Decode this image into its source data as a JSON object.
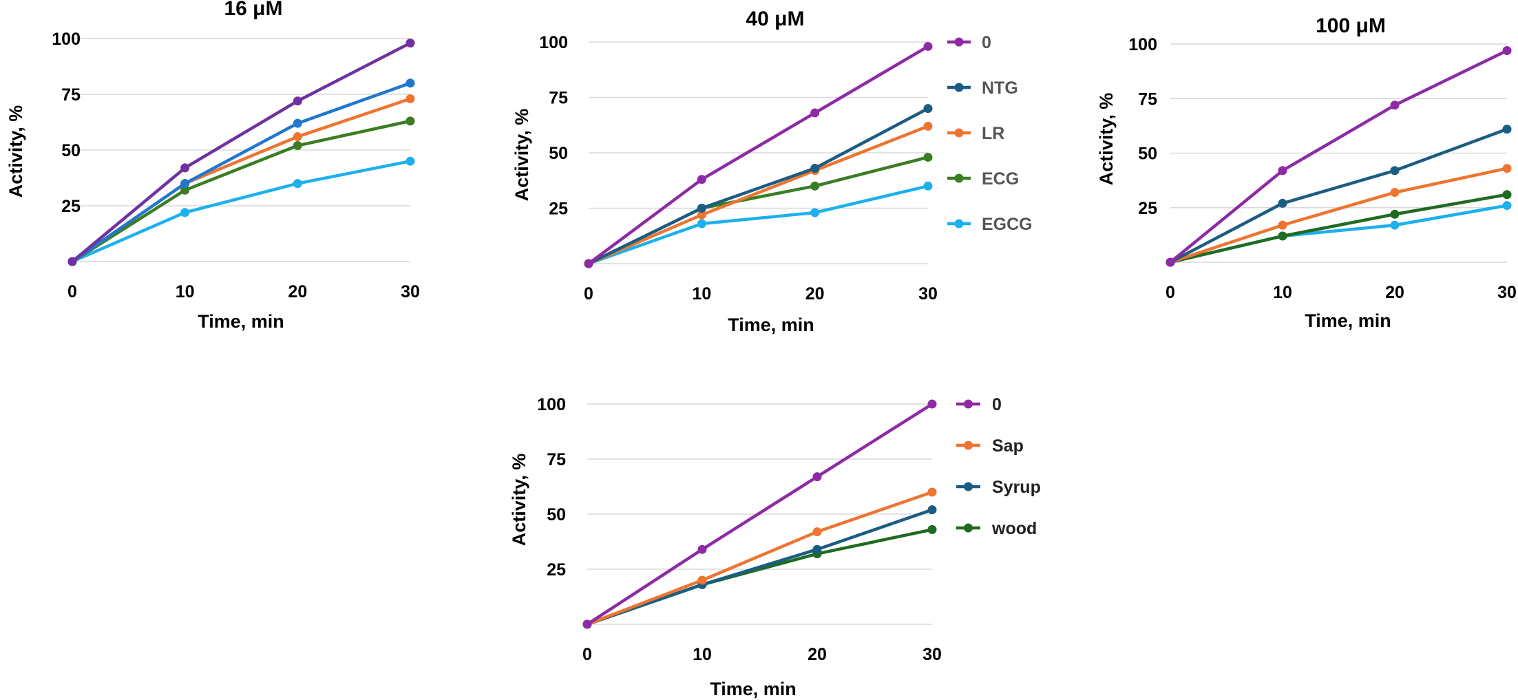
{
  "colors": {
    "purple": "#8e2aa6",
    "purple_dark": "#7030a0",
    "navy": "#1b5c82",
    "blue": "#1f77cf",
    "orange": "#ed7531",
    "green": "#3a7d22",
    "dark_green": "#1f6b22",
    "cyan": "#1cb0ec",
    "legend_gray": "#555555",
    "legend_dark": "#222222"
  },
  "chart_data": [
    {
      "type": "line",
      "title": "16 μM",
      "xlabel": "Time, min",
      "ylabel": "Activity, %",
      "x": [
        0,
        10,
        20,
        30
      ],
      "yticks": [
        25,
        50,
        75,
        100
      ],
      "ylim": [
        0,
        105
      ],
      "grid": true,
      "legend": "none",
      "series": [
        {
          "name": "0",
          "color": "purple_dark",
          "values": [
            0,
            42,
            72,
            98
          ]
        },
        {
          "name": "NTG",
          "color": "blue",
          "values": [
            0,
            35,
            62,
            80
          ]
        },
        {
          "name": "LR",
          "color": "orange",
          "values": [
            0,
            35,
            56,
            73
          ]
        },
        {
          "name": "ECG",
          "color": "green",
          "values": [
            0,
            32,
            52,
            63
          ]
        },
        {
          "name": "EGCG",
          "color": "cyan",
          "values": [
            0,
            22,
            35,
            45
          ]
        }
      ]
    },
    {
      "type": "line",
      "title": "40 μM",
      "xlabel": "Time, min",
      "ylabel": "Activity, %",
      "x": [
        0,
        10,
        20,
        30
      ],
      "yticks": [
        25,
        50,
        75,
        100
      ],
      "ylim": [
        0,
        105
      ],
      "grid": true,
      "legend": "right",
      "legend_color": "legend_gray",
      "series": [
        {
          "name": "0",
          "color": "purple",
          "values": [
            0,
            38,
            68,
            98
          ]
        },
        {
          "name": "NTG",
          "color": "navy",
          "values": [
            0,
            25,
            43,
            70
          ]
        },
        {
          "name": "LR",
          "color": "orange",
          "values": [
            0,
            22,
            42,
            62
          ]
        },
        {
          "name": "ECG",
          "color": "green",
          "values": [
            0,
            25,
            35,
            48
          ]
        },
        {
          "name": "EGCG",
          "color": "cyan",
          "values": [
            0,
            18,
            23,
            35
          ]
        }
      ]
    },
    {
      "type": "line",
      "title": "100 μM",
      "xlabel": "Time, min",
      "ylabel": "Activity, %",
      "x": [
        0,
        10,
        20,
        30
      ],
      "yticks": [
        25,
        50,
        75,
        100
      ],
      "ylim": [
        0,
        105
      ],
      "grid": true,
      "legend": "none",
      "series": [
        {
          "name": "0",
          "color": "purple",
          "values": [
            0,
            42,
            72,
            97
          ]
        },
        {
          "name": "NTG",
          "color": "navy",
          "values": [
            0,
            27,
            42,
            61
          ]
        },
        {
          "name": "LR",
          "color": "orange",
          "values": [
            0,
            17,
            32,
            43
          ]
        },
        {
          "name": "ECG",
          "color": "dark_green",
          "values": [
            0,
            12,
            22,
            31
          ]
        },
        {
          "name": "EGCG",
          "color": "cyan",
          "values": [
            0,
            12,
            17,
            26
          ]
        }
      ]
    },
    {
      "type": "line",
      "title": "",
      "xlabel": "Time, min",
      "ylabel": "Activity, %",
      "x": [
        0,
        10,
        20,
        30
      ],
      "yticks": [
        25,
        50,
        75,
        100
      ],
      "ylim": [
        0,
        102
      ],
      "grid": true,
      "legend": "right",
      "legend_color": "legend_dark",
      "series": [
        {
          "name": "0",
          "color": "purple",
          "values": [
            0,
            34,
            67,
            100
          ]
        },
        {
          "name": "Sap",
          "color": "orange",
          "values": [
            0,
            20,
            42,
            60
          ]
        },
        {
          "name": "Syrup",
          "color": "navy",
          "values": [
            0,
            18,
            34,
            52
          ]
        },
        {
          "name": "wood",
          "color": "dark_green",
          "values": [
            0,
            18,
            32,
            43
          ]
        }
      ]
    }
  ]
}
